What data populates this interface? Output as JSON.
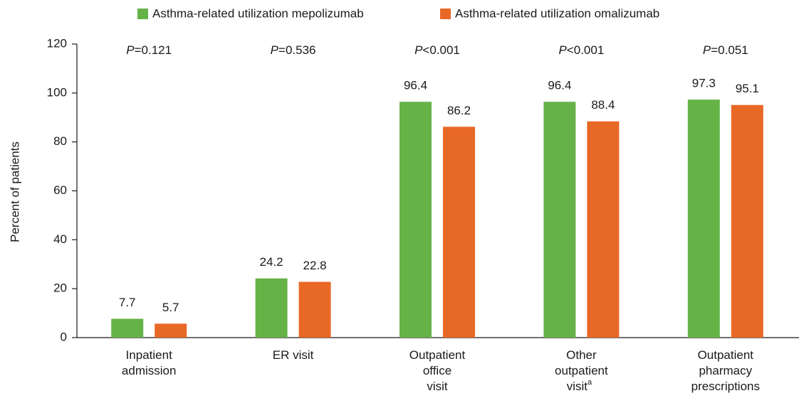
{
  "chart_data": {
    "type": "bar",
    "categories": [
      "Inpatient\nadmission",
      "ER visit",
      "Outpatient\noffice\nvisit",
      "Other\noutpatient\nvisit",
      "Outpatient\npharmacy\nprescriptions"
    ],
    "category_notes": [
      null,
      null,
      null,
      "a",
      null
    ],
    "series": [
      {
        "name": "Asthma-related utilization mepolizumab",
        "color": "#65b347",
        "values": [
          7.7,
          24.2,
          96.4,
          96.4,
          97.3
        ]
      },
      {
        "name": "Asthma-related utilization omalizumab",
        "color": "#e86826",
        "values": [
          5.7,
          22.8,
          86.2,
          88.4,
          95.1
        ]
      }
    ],
    "annotations": [
      "P=0.121",
      "P=0.536",
      "P<0.001",
      "P<0.001",
      "P=0.051"
    ],
    "ylabel": "Percent of patients",
    "ylim": [
      0,
      120
    ],
    "yticks": [
      0,
      20,
      40,
      60,
      80,
      100,
      120
    ],
    "grid": false,
    "legend": "top"
  }
}
